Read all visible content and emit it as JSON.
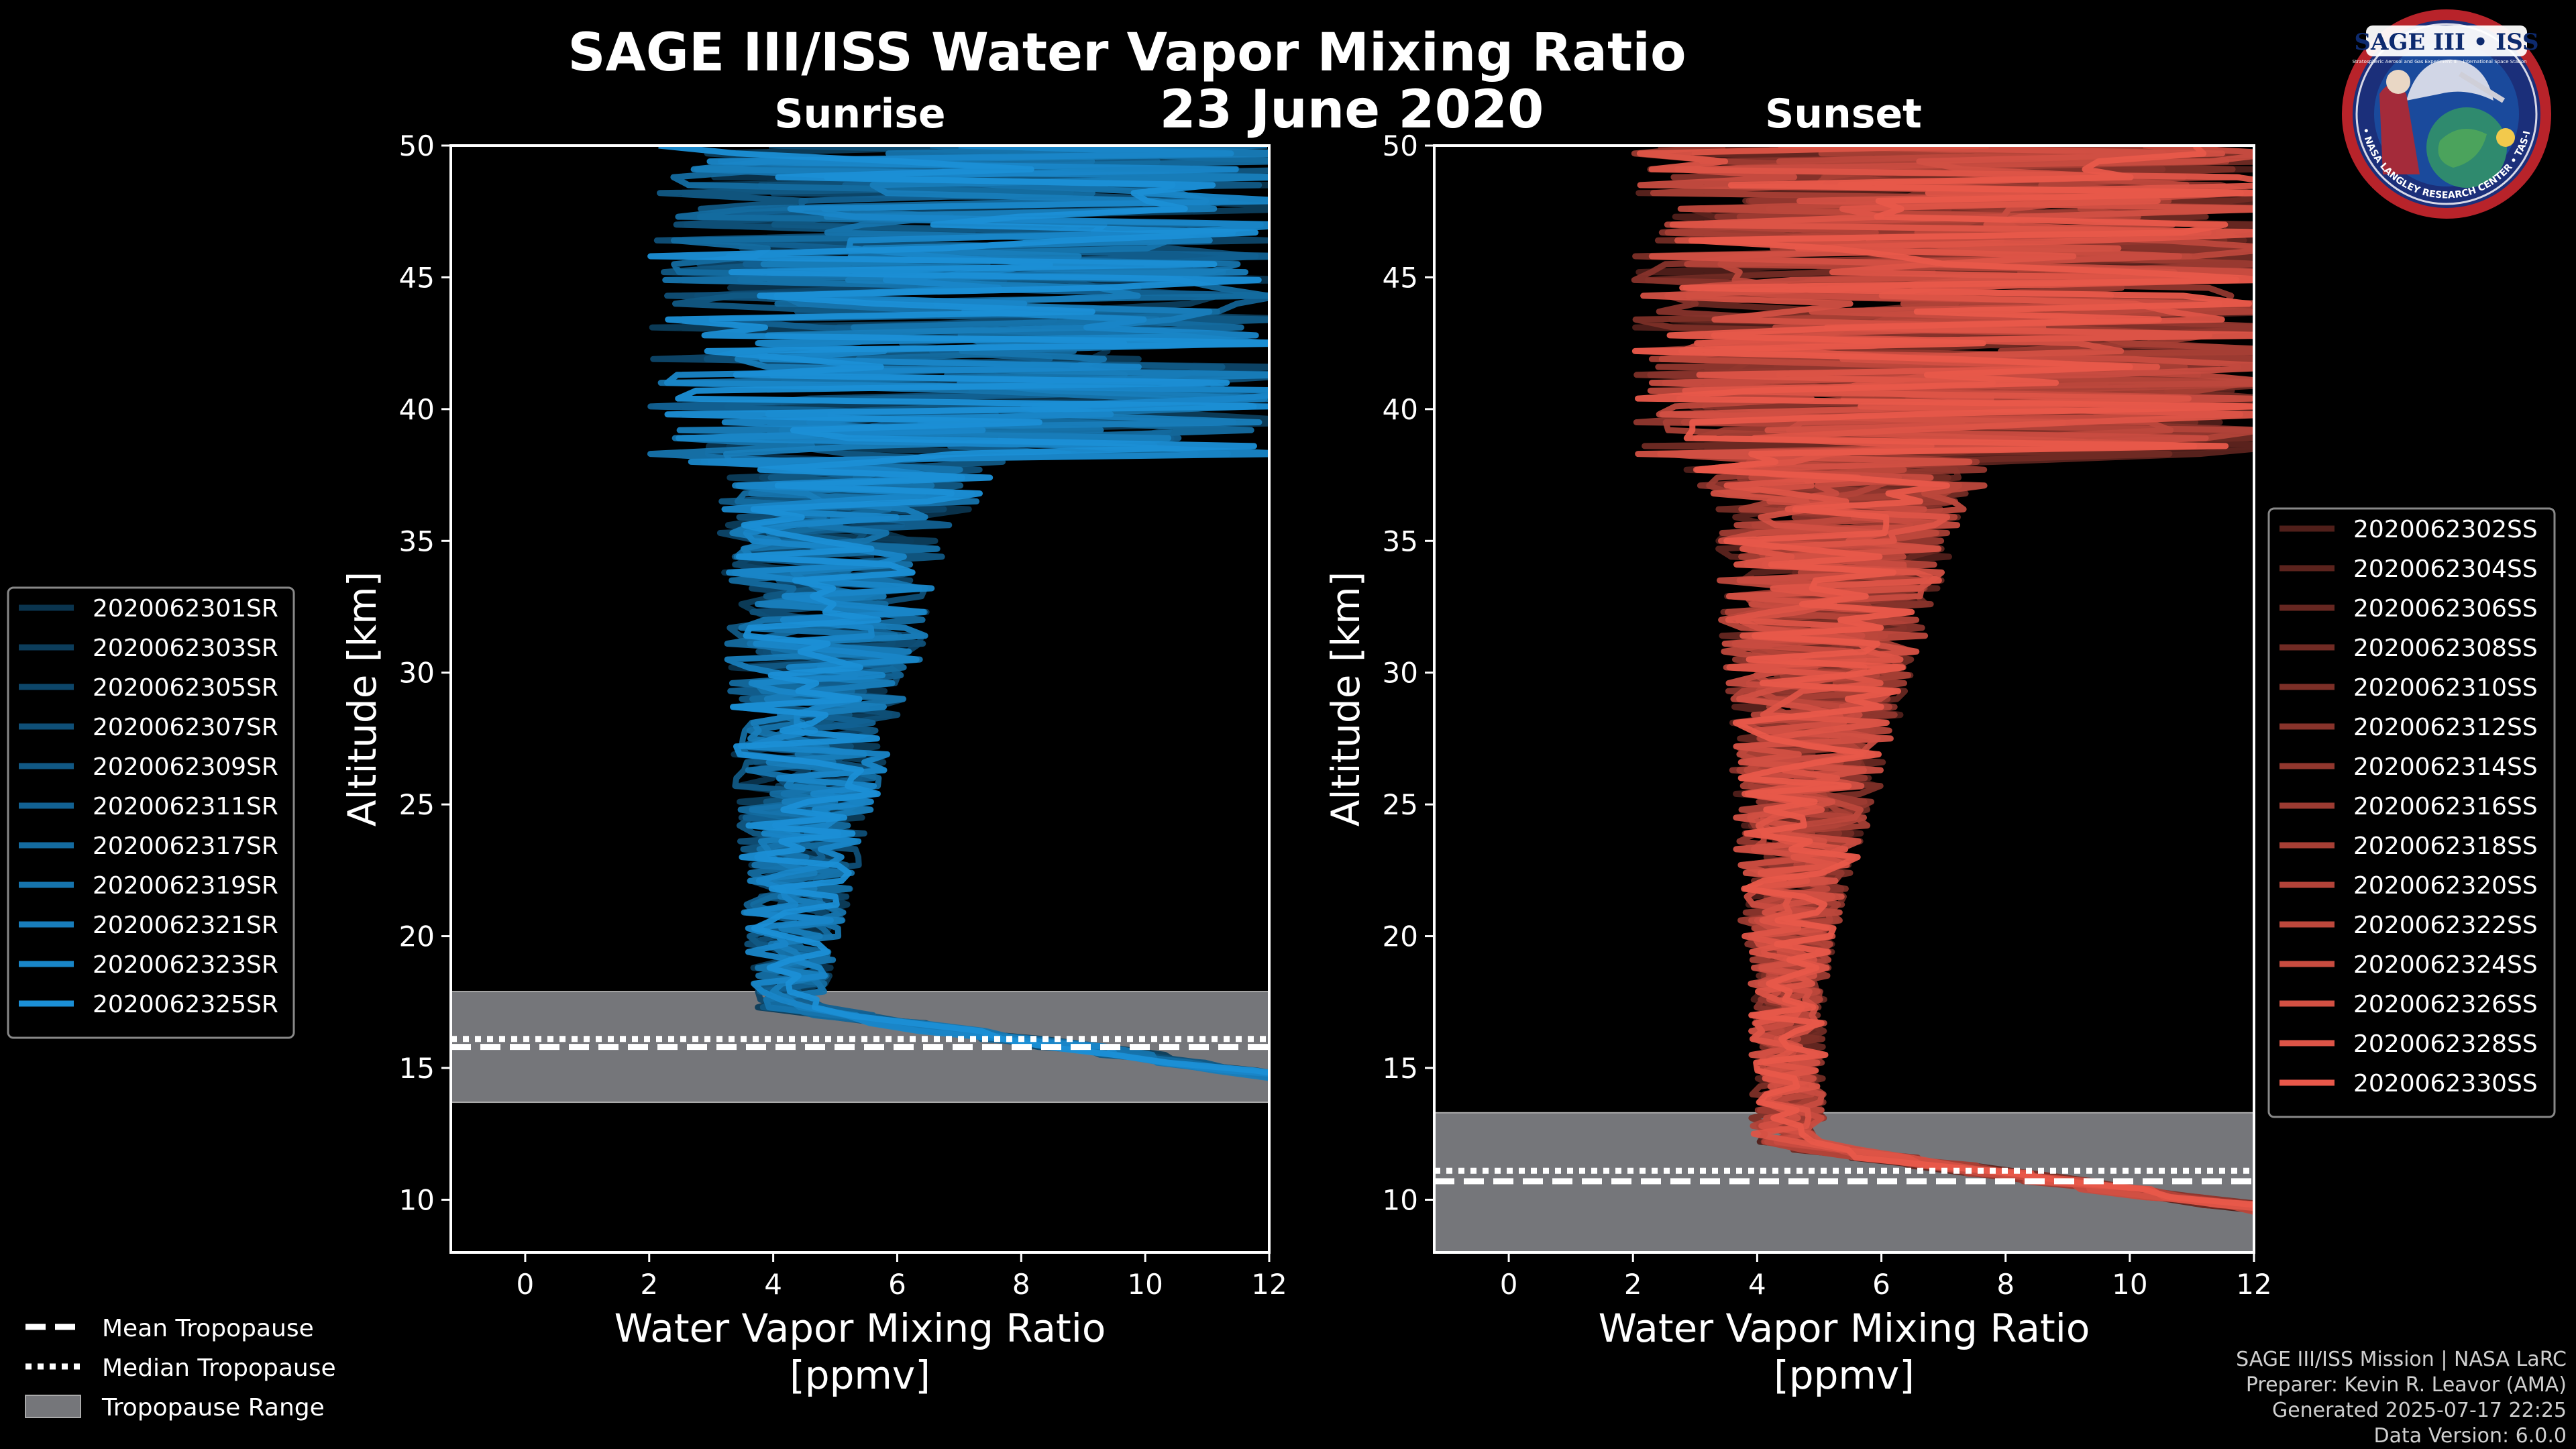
{
  "header": {
    "title": "SAGE III/ISS Water Vapor Mixing Ratio",
    "date": "23 June 2020"
  },
  "logo": {
    "name": "SAGE III • ISS",
    "subtitle_left": "Stratospheric Aerosol and Gas Experiment III",
    "subtitle_right": "International Space Station",
    "ring_text": "BALL • NASA LANGLEY RESEARCH CENTER • TAS-I • ESA"
  },
  "chart_data": [
    {
      "type": "line",
      "title": "Sunrise",
      "xlabel": "Water Vapor Mixing Ratio\n[ppmv]",
      "ylabel": "Altitude [km]",
      "xlim": [
        -1.2,
        12
      ],
      "ylim": [
        8,
        50
      ],
      "xticks": [
        "0",
        "2",
        "4",
        "6",
        "8",
        "10",
        "12"
      ],
      "yticks": [
        "10",
        "15",
        "20",
        "25",
        "30",
        "35",
        "40",
        "45",
        "50"
      ],
      "tropopause": {
        "min": 13.7,
        "max": 17.9,
        "mean": 15.8,
        "median": 16.1
      },
      "series_color": "#1b8fd6",
      "series": [
        {
          "name": "2020062301SR"
        },
        {
          "name": "2020062303SR"
        },
        {
          "name": "2020062305SR"
        },
        {
          "name": "2020062307SR"
        },
        {
          "name": "2020062309SR"
        },
        {
          "name": "2020062311SR"
        },
        {
          "name": "2020062317SR"
        },
        {
          "name": "2020062319SR"
        },
        {
          "name": "2020062321SR"
        },
        {
          "name": "2020062323SR"
        },
        {
          "name": "2020062325SR"
        }
      ],
      "legend": "left"
    },
    {
      "type": "line",
      "title": "Sunset",
      "xlabel": "Water Vapor Mixing Ratio\n[ppmv]",
      "ylabel": "Altitude [km]",
      "xlim": [
        -1.2,
        12
      ],
      "ylim": [
        8,
        50
      ],
      "xticks": [
        "0",
        "2",
        "4",
        "6",
        "8",
        "10",
        "12"
      ],
      "yticks": [
        "10",
        "15",
        "20",
        "25",
        "30",
        "35",
        "40",
        "45",
        "50"
      ],
      "tropopause": {
        "min": 8.0,
        "max": 13.3,
        "mean": 10.7,
        "median": 11.1
      },
      "series_color": "#e8584a",
      "series": [
        {
          "name": "2020062302SS"
        },
        {
          "name": "2020062304SS"
        },
        {
          "name": "2020062306SS"
        },
        {
          "name": "2020062308SS"
        },
        {
          "name": "2020062310SS"
        },
        {
          "name": "2020062312SS"
        },
        {
          "name": "2020062314SS"
        },
        {
          "name": "2020062316SS"
        },
        {
          "name": "2020062318SS"
        },
        {
          "name": "2020062320SS"
        },
        {
          "name": "2020062322SS"
        },
        {
          "name": "2020062324SS"
        },
        {
          "name": "2020062326SS"
        },
        {
          "name": "2020062328SS"
        },
        {
          "name": "2020062330SS"
        }
      ],
      "legend": "right"
    }
  ],
  "tropopause_legend": {
    "mean": "Mean Tropopause",
    "median": "Median Tropopause",
    "range": "Tropopause Range"
  },
  "credits": {
    "line1": "SAGE III/ISS Mission | NASA LaRC",
    "line2": "Preparer: Kevin R. Leavor (AMA)",
    "line3": "Generated 2025-07-17 22:25",
    "line4": "Data Version: 6.0.0"
  },
  "colors": {
    "sunrise": "#1b8fd6",
    "sunset": "#e8584a",
    "tropopause_range": "#75767a",
    "background": "#000000"
  }
}
